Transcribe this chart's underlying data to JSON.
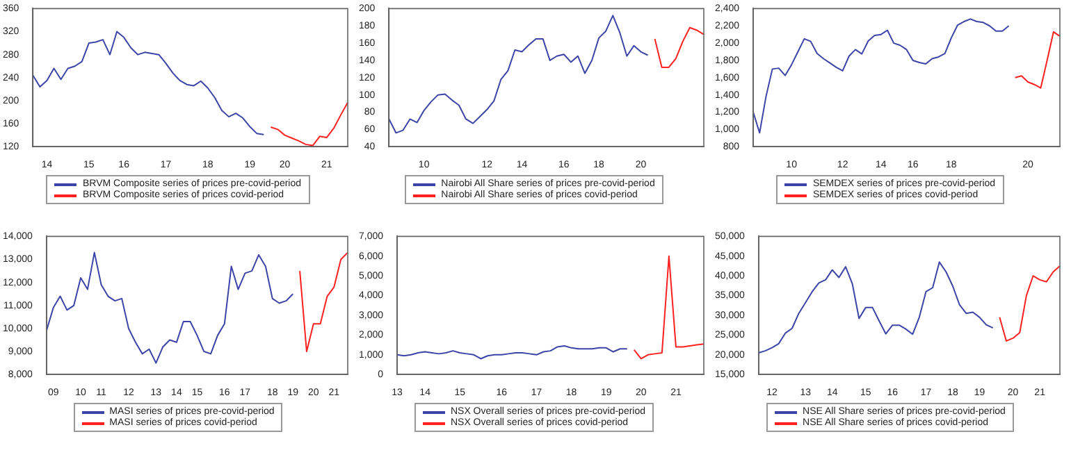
{
  "chart_data": [
    {
      "type": "line",
      "legend": "bottom",
      "grid": false,
      "marker": "none",
      "categories": [
        null,
        null,
        "14",
        null,
        null,
        null,
        null,
        null,
        "15",
        null,
        null,
        null,
        null,
        "16",
        null,
        null,
        null,
        null,
        null,
        "17",
        null,
        null,
        null,
        null,
        null,
        "18",
        null,
        null,
        null,
        null,
        null,
        "19",
        null,
        null,
        null,
        null,
        "20",
        null,
        null,
        null,
        null,
        null,
        "21",
        null,
        null,
        null
      ],
      "series": [
        {
          "name": "BRVM Composite series of prices pre-covid-period",
          "color": "#3c44a8",
          "values": [
            244,
            224,
            235,
            256,
            237,
            256,
            260,
            268,
            300,
            302,
            306,
            280,
            320,
            310,
            292,
            280,
            284,
            282,
            280,
            265,
            248,
            235,
            228,
            226,
            234,
            222,
            205,
            183,
            172,
            178,
            170,
            155,
            143,
            141,
            null,
            null,
            null,
            null,
            null,
            null,
            null,
            null,
            null,
            null,
            null,
            null
          ]
        },
        {
          "name": "BRVM Composite series of prices covid-period",
          "color": "#ff2020",
          "values": [
            null,
            null,
            null,
            null,
            null,
            null,
            null,
            null,
            null,
            null,
            null,
            null,
            null,
            null,
            null,
            null,
            null,
            null,
            null,
            null,
            null,
            null,
            null,
            null,
            null,
            null,
            null,
            null,
            null,
            null,
            null,
            null,
            null,
            null,
            154,
            150,
            140,
            135,
            130,
            124,
            122,
            138,
            136,
            152,
            175,
            197
          ]
        }
      ],
      "ylim": [
        120,
        360
      ],
      "yticks": [
        120,
        160,
        200,
        240,
        280,
        320,
        360
      ]
    },
    {
      "type": "line",
      "legend": "bottom",
      "grid": false,
      "marker": "none",
      "categories": [
        null,
        null,
        null,
        null,
        null,
        "10",
        null,
        null,
        null,
        null,
        null,
        null,
        null,
        null,
        "12",
        null,
        null,
        null,
        null,
        "14",
        null,
        null,
        null,
        null,
        null,
        "16",
        null,
        null,
        null,
        null,
        "18",
        null,
        null,
        null,
        null,
        null,
        "20",
        null,
        null,
        null,
        null,
        null,
        null,
        null,
        null,
        null
      ],
      "series": [
        {
          "name": "Nairobi All Share series of prices pre-covid-period",
          "color": "#3c44a8",
          "values": [
            72,
            56,
            59,
            72,
            68,
            82,
            92,
            100,
            101,
            94,
            88,
            72,
            67,
            75,
            83,
            93,
            118,
            128,
            152,
            150,
            158,
            165,
            165,
            140,
            145,
            147,
            138,
            145,
            125,
            140,
            166,
            174,
            192,
            172,
            145,
            157,
            150,
            146,
            null,
            null,
            null,
            null,
            null,
            null,
            null,
            null
          ]
        },
        {
          "name": "Nairobi All Share series of prices covid-period",
          "color": "#ff2020",
          "values": [
            null,
            null,
            null,
            null,
            null,
            null,
            null,
            null,
            null,
            null,
            null,
            null,
            null,
            null,
            null,
            null,
            null,
            null,
            null,
            null,
            null,
            null,
            null,
            null,
            null,
            null,
            null,
            null,
            null,
            null,
            null,
            null,
            null,
            null,
            null,
            null,
            null,
            null,
            165,
            132,
            132,
            142,
            162,
            178,
            175,
            170
          ]
        }
      ],
      "ylim": [
        40,
        200
      ],
      "yticks": [
        40,
        60,
        80,
        100,
        120,
        140,
        160,
        180,
        200
      ]
    },
    {
      "type": "line",
      "legend": "bottom",
      "grid": false,
      "marker": "none",
      "categories": [
        null,
        null,
        null,
        null,
        null,
        null,
        "10",
        null,
        null,
        null,
        null,
        null,
        null,
        null,
        "12",
        null,
        null,
        null,
        null,
        null,
        "14",
        null,
        null,
        null,
        null,
        "16",
        null,
        null,
        null,
        null,
        null,
        "18",
        null,
        null,
        null,
        null,
        null,
        null,
        null,
        null,
        null,
        null,
        null,
        "20",
        null,
        null,
        null,
        null,
        null
      ],
      "series": [
        {
          "name": "SEMDEX series of prices pre-covid-period",
          "color": "#3c44a8",
          "values": [
            1200,
            960,
            1380,
            1700,
            1710,
            1625,
            1750,
            1900,
            2050,
            2020,
            1880,
            1820,
            1770,
            1720,
            1680,
            1850,
            1925,
            1875,
            2025,
            2090,
            2100,
            2150,
            2000,
            1975,
            1925,
            1800,
            1775,
            1760,
            1820,
            1840,
            1880,
            2060,
            2210,
            2250,
            2280,
            2250,
            2240,
            2200,
            2140,
            2140,
            2200,
            null,
            null,
            null,
            null,
            null,
            null,
            null,
            null
          ]
        },
        {
          "name": "SEMDEX series of prices covid-period",
          "color": "#ff2020",
          "values": [
            null,
            null,
            null,
            null,
            null,
            null,
            null,
            null,
            null,
            null,
            null,
            null,
            null,
            null,
            null,
            null,
            null,
            null,
            null,
            null,
            null,
            null,
            null,
            null,
            null,
            null,
            null,
            null,
            null,
            null,
            null,
            null,
            null,
            null,
            null,
            null,
            null,
            null,
            null,
            null,
            null,
            1600,
            1620,
            1550,
            1520,
            1480,
            1800,
            2130,
            2080
          ]
        }
      ],
      "ylim": [
        800,
        2400
      ],
      "yticks": [
        {
          "value": 800,
          "label": "800"
        },
        {
          "value": 1000,
          "label": "1,000"
        },
        {
          "value": 1200,
          "label": "1,200"
        },
        {
          "value": 1400,
          "label": "1,400"
        },
        {
          "value": 1600,
          "label": "1,600"
        },
        {
          "value": 1800,
          "label": "1,800"
        },
        {
          "value": 2000,
          "label": "2,000"
        },
        {
          "value": 2200,
          "label": "2,200"
        },
        {
          "value": 2400,
          "label": "2,400"
        }
      ]
    },
    {
      "type": "line",
      "legend": "bottom",
      "grid": false,
      "marker": "none",
      "categories": [
        null,
        "09",
        null,
        null,
        null,
        "10",
        null,
        null,
        "11",
        null,
        null,
        null,
        "12",
        null,
        null,
        null,
        "13",
        null,
        null,
        "14",
        null,
        null,
        "15",
        null,
        null,
        null,
        "16",
        null,
        null,
        "17",
        null,
        null,
        null,
        "18",
        null,
        null,
        "19",
        null,
        null,
        "20",
        null,
        null,
        "21",
        null,
        null
      ],
      "series": [
        {
          "name": "MASI series of prices pre-covid-period",
          "color": "#3c44a8",
          "values": [
            9900,
            10900,
            11400,
            10800,
            11000,
            12200,
            11700,
            13300,
            11900,
            11400,
            11200,
            11300,
            10000,
            9400,
            8900,
            9100,
            8500,
            9200,
            9500,
            9400,
            10300,
            10300,
            9700,
            9000,
            8900,
            9700,
            10200,
            12700,
            11700,
            12400,
            12500,
            13200,
            12700,
            11300,
            11100,
            11200,
            11500,
            null,
            null,
            null,
            null,
            null,
            null,
            null,
            null
          ]
        },
        {
          "name": "MASI series of prices covid-period",
          "color": "#ff2020",
          "values": [
            null,
            null,
            null,
            null,
            null,
            null,
            null,
            null,
            null,
            null,
            null,
            null,
            null,
            null,
            null,
            null,
            null,
            null,
            null,
            null,
            null,
            null,
            null,
            null,
            null,
            null,
            null,
            null,
            null,
            null,
            null,
            null,
            null,
            null,
            null,
            null,
            null,
            12500,
            9000,
            10200,
            10200,
            11400,
            11800,
            13000,
            13300
          ]
        }
      ],
      "ylim": [
        8000,
        14000
      ],
      "yticks": [
        {
          "value": 8000,
          "label": "8,000"
        },
        {
          "value": 9000,
          "label": "9,000"
        },
        {
          "value": 10000,
          "label": "10,000"
        },
        {
          "value": 11000,
          "label": "11,000"
        },
        {
          "value": 12000,
          "label": "12,000"
        },
        {
          "value": 13000,
          "label": "13,000"
        },
        {
          "value": 14000,
          "label": "14,000"
        }
      ]
    },
    {
      "type": "line",
      "legend": "bottom",
      "grid": false,
      "marker": "none",
      "categories": [
        "13",
        null,
        null,
        null,
        "14",
        null,
        null,
        null,
        null,
        "15",
        null,
        null,
        null,
        null,
        null,
        "16",
        null,
        null,
        null,
        null,
        "17",
        null,
        null,
        null,
        null,
        "18",
        null,
        null,
        null,
        null,
        "19",
        null,
        null,
        null,
        null,
        "20",
        null,
        null,
        null,
        null,
        "21",
        null,
        null,
        null,
        null
      ],
      "series": [
        {
          "name": "NSX Overall series of prices pre-covid-period",
          "color": "#3c44a8",
          "values": [
            1000,
            950,
            1000,
            1100,
            1150,
            1100,
            1050,
            1100,
            1200,
            1100,
            1050,
            1000,
            800,
            950,
            1000,
            1000,
            1050,
            1100,
            1100,
            1050,
            1000,
            1150,
            1200,
            1400,
            1450,
            1350,
            1300,
            1300,
            1300,
            1350,
            1350,
            1150,
            1300,
            1300,
            null,
            null,
            null,
            null,
            null,
            null,
            null,
            null,
            null,
            null,
            null
          ]
        },
        {
          "name": "NSX Overall series of prices covid-period",
          "color": "#ff2020",
          "values": [
            null,
            null,
            null,
            null,
            null,
            null,
            null,
            null,
            null,
            null,
            null,
            null,
            null,
            null,
            null,
            null,
            null,
            null,
            null,
            null,
            null,
            null,
            null,
            null,
            null,
            null,
            null,
            null,
            null,
            null,
            null,
            null,
            null,
            null,
            1250,
            800,
            1000,
            1050,
            1100,
            6000,
            1400,
            1400,
            1450,
            1500,
            1550
          ]
        }
      ],
      "ylim": [
        0,
        7000
      ],
      "yticks": [
        0,
        {
          "value": 1000,
          "label": "1,000"
        },
        {
          "value": 2000,
          "label": "2,000"
        },
        {
          "value": 3000,
          "label": "3,000"
        },
        {
          "value": 4000,
          "label": "4,000"
        },
        {
          "value": 5000,
          "label": "5,000"
        },
        {
          "value": 6000,
          "label": "6,000"
        },
        {
          "value": 7000,
          "label": "7,000"
        }
      ]
    },
    {
      "type": "line",
      "legend": "bottom",
      "grid": false,
      "marker": "none",
      "categories": [
        null,
        null,
        "12",
        null,
        null,
        null,
        null,
        "13",
        null,
        null,
        null,
        "14",
        null,
        null,
        null,
        null,
        "15",
        null,
        null,
        null,
        "16",
        null,
        null,
        null,
        null,
        "17",
        null,
        null,
        null,
        "18",
        null,
        null,
        null,
        "19",
        null,
        null,
        null,
        null,
        "20",
        null,
        null,
        null,
        "21",
        null,
        null,
        null
      ],
      "series": [
        {
          "name": "NSE All Share series of prices pre-covid-period",
          "color": "#3c44a8",
          "values": [
            20500,
            21000,
            21800,
            22800,
            25500,
            26700,
            30500,
            33200,
            36000,
            38200,
            39000,
            41500,
            39600,
            42300,
            38000,
            29200,
            32000,
            32000,
            28600,
            25300,
            27500,
            27500,
            26500,
            25200,
            29500,
            36000,
            37000,
            43500,
            41000,
            37400,
            32700,
            30500,
            30800,
            29500,
            27600,
            26800,
            null,
            null,
            null,
            null,
            null,
            null,
            null,
            null,
            null,
            null
          ]
        },
        {
          "name": "NSE All Share series of prices covid-period",
          "color": "#ff2020",
          "values": [
            null,
            null,
            null,
            null,
            null,
            null,
            null,
            null,
            null,
            null,
            null,
            null,
            null,
            null,
            null,
            null,
            null,
            null,
            null,
            null,
            null,
            null,
            null,
            null,
            null,
            null,
            null,
            null,
            null,
            null,
            null,
            null,
            null,
            null,
            null,
            null,
            29500,
            23500,
            24200,
            25600,
            35000,
            40000,
            39000,
            38500,
            41000,
            42500
          ]
        }
      ],
      "ylim": [
        15000,
        50000
      ],
      "yticks": [
        {
          "value": 15000,
          "label": "15,000"
        },
        {
          "value": 20000,
          "label": "20,000"
        },
        {
          "value": 25000,
          "label": "25,000"
        },
        {
          "value": 30000,
          "label": "30,000"
        },
        {
          "value": 35000,
          "label": "35,000"
        },
        {
          "value": 40000,
          "label": "40,000"
        },
        {
          "value": 45000,
          "label": "45,000"
        },
        {
          "value": 50000,
          "label": "50,000"
        }
      ]
    }
  ]
}
